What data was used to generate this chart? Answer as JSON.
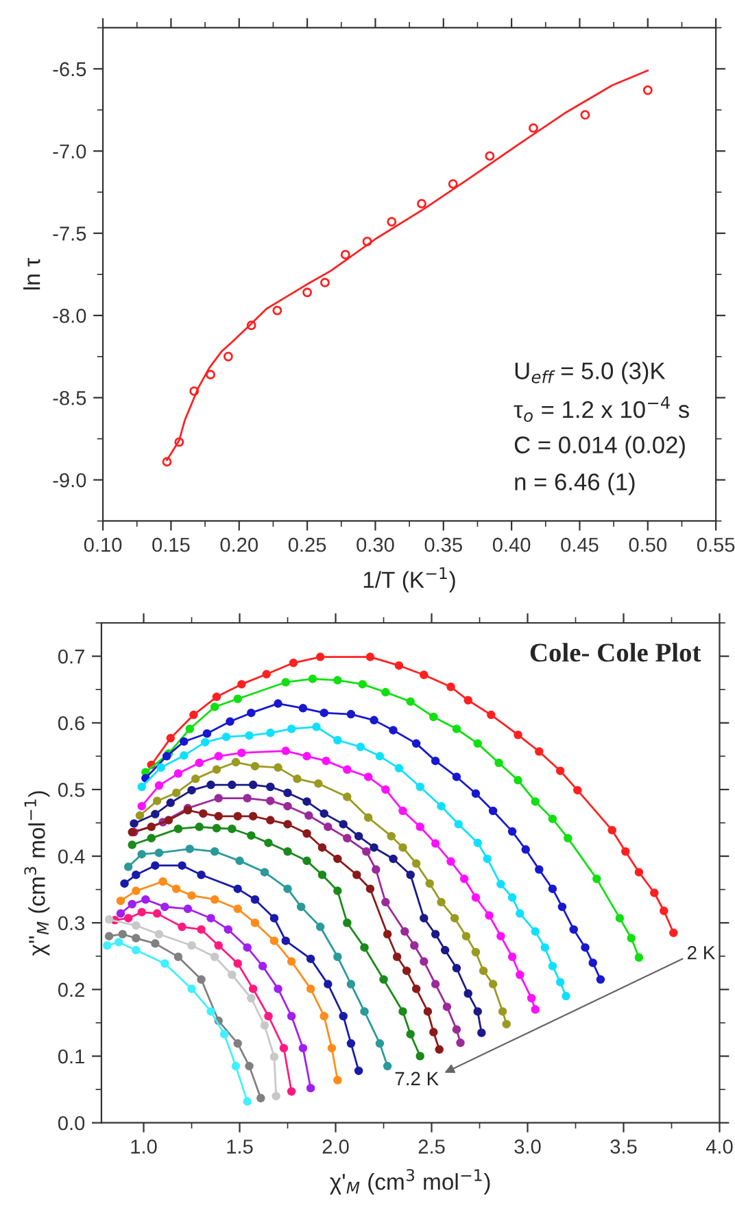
{
  "chart_data": [
    {
      "type": "scatter",
      "xlabel": "1/T (K$^{−1}$)",
      "ylabel": "ln τ",
      "xlim": [
        0.1,
        0.55
      ],
      "ylim": [
        -9.25,
        -6.25
      ],
      "xticks": [
        {
          "value": 0.1,
          "label": "0.10"
        },
        {
          "value": 0.15,
          "label": "0.15"
        },
        {
          "value": 0.2,
          "label": "0.20"
        },
        {
          "value": 0.25,
          "label": "0.25"
        },
        {
          "value": 0.3,
          "label": "0.30"
        },
        {
          "value": 0.35,
          "label": "0.35"
        },
        {
          "value": 0.4,
          "label": "0.40"
        },
        {
          "value": 0.45,
          "label": "0.45"
        },
        {
          "value": 0.5,
          "label": "0.50"
        },
        {
          "value": 0.55,
          "label": "0.55"
        }
      ],
      "yticks": [
        -6.5,
        {
          "value": -7.0,
          "label": "-7.0"
        },
        -7.5,
        {
          "value": -8.0,
          "label": "-8.0"
        },
        -8.5,
        {
          "value": -9.0,
          "label": "-9.0"
        }
      ],
      "grid": false,
      "series": [
        {
          "type": "scatter",
          "marker": "circle",
          "color": "#ff2020",
          "x": [
            0.147,
            0.156,
            0.167,
            0.179,
            0.192,
            0.209,
            0.228,
            0.25,
            0.263,
            0.278,
            0.294,
            0.312,
            0.334,
            0.357,
            0.384,
            0.416,
            0.454,
            0.5
          ],
          "values": [
            -8.89,
            -8.77,
            -8.46,
            -8.36,
            -8.25,
            -8.06,
            -7.97,
            -7.86,
            -7.8,
            -7.63,
            -7.55,
            -7.43,
            -7.32,
            -7.2,
            -7.03,
            -6.86,
            -6.78,
            -6.63
          ]
        },
        {
          "type": "line",
          "color": "#ff2020",
          "x": [
            0.147,
            0.156,
            0.16,
            0.17,
            0.178,
            0.187,
            0.195,
            0.209,
            0.22,
            0.232,
            0.25,
            0.267,
            0.301,
            0.336,
            0.37,
            0.405,
            0.439,
            0.474,
            0.5
          ],
          "values": [
            -8.88,
            -8.76,
            -8.64,
            -8.44,
            -8.32,
            -8.22,
            -8.16,
            -8.05,
            -7.96,
            -7.9,
            -7.81,
            -7.73,
            -7.53,
            -7.35,
            -7.16,
            -6.96,
            -6.77,
            -6.6,
            -6.51
          ]
        }
      ],
      "annotations": [
        "U$_{eff}$ = 5.0 (3)K",
        "τ$_{o}$ = 1.2 x 10$^{−4}$ s",
        "C = 0.014 (0.02)",
        "n = 6.46 (1)"
      ]
    },
    {
      "type": "line",
      "title": "Cole- Cole Plot",
      "xlabel": "χ'$_{M}$ (cm$^{3}$ mol$^{−1}$)",
      "ylabel": "χ''$_{M}$ (cm$^{3}$ mol$^{−1}$)",
      "xlim": [
        0.78,
        4.0
      ],
      "ylim": [
        0.0,
        0.75
      ],
      "xticks": [
        {
          "value": 1.0,
          "label": "1.0"
        },
        1.5,
        {
          "value": 2.0,
          "label": "2.0"
        },
        2.5,
        {
          "value": 3.0,
          "label": "3.0"
        },
        3.5,
        {
          "value": 4.0,
          "label": "4.0"
        }
      ],
      "yticks": [
        {
          "value": 0.0,
          "label": "0.0"
        },
        0.1,
        0.2,
        0.3,
        0.4,
        0.5,
        0.6,
        0.7
      ],
      "grid": false,
      "marker": "circle",
      "line_style": "solid",
      "series": [
        {
          "color": "#ff2020",
          "x": [
            1.04,
            1.14,
            1.26,
            1.38,
            1.51,
            1.64,
            1.78,
            1.92,
            2.18,
            2.33,
            2.46,
            2.6,
            2.69,
            2.81,
            2.95,
            3.06,
            3.17,
            3.26,
            3.44,
            3.51,
            3.58,
            3.66,
            3.71,
            3.76
          ],
          "values": [
            0.537,
            0.577,
            0.612,
            0.639,
            0.658,
            0.673,
            0.69,
            0.699,
            0.699,
            0.686,
            0.672,
            0.654,
            0.634,
            0.612,
            0.582,
            0.557,
            0.528,
            0.499,
            0.439,
            0.407,
            0.376,
            0.345,
            0.318,
            0.285
          ]
        },
        {
          "color": "#10e010",
          "x": [
            1.01,
            1.13,
            1.24,
            1.37,
            1.49,
            1.74,
            1.88,
            2.01,
            2.14,
            2.26,
            2.39,
            2.51,
            2.63,
            2.74,
            2.85,
            2.95,
            3.04,
            3.13,
            3.21,
            3.36,
            3.48,
            3.54,
            3.58
          ],
          "values": [
            0.526,
            0.554,
            0.591,
            0.624,
            0.636,
            0.661,
            0.666,
            0.664,
            0.658,
            0.646,
            0.632,
            0.609,
            0.591,
            0.569,
            0.54,
            0.514,
            0.482,
            0.456,
            0.427,
            0.366,
            0.307,
            0.277,
            0.248
          ]
        },
        {
          "color": "#1818d0",
          "x": [
            1.01,
            1.12,
            1.21,
            1.33,
            1.45,
            1.56,
            1.7,
            1.83,
            1.94,
            2.08,
            2.2,
            2.3,
            2.42,
            2.52,
            2.63,
            2.73,
            2.82,
            2.92,
            2.99,
            3.06,
            3.13,
            3.18,
            3.24,
            3.3,
            3.34,
            3.38
          ],
          "values": [
            0.517,
            0.55,
            0.572,
            0.584,
            0.602,
            0.615,
            0.629,
            0.622,
            0.615,
            0.613,
            0.604,
            0.589,
            0.569,
            0.543,
            0.519,
            0.494,
            0.468,
            0.437,
            0.41,
            0.38,
            0.351,
            0.324,
            0.29,
            0.263,
            0.24,
            0.215
          ]
        },
        {
          "color": "#10e0ff",
          "x": [
            0.99,
            1.09,
            1.21,
            1.32,
            1.43,
            1.55,
            1.66,
            1.77,
            1.9,
            2.01,
            2.13,
            2.23,
            2.33,
            2.44,
            2.55,
            2.64,
            2.74,
            2.79,
            2.86,
            2.92,
            2.96,
            3.04,
            3.09,
            3.13,
            3.17,
            3.2
          ],
          "values": [
            0.504,
            0.533,
            0.551,
            0.571,
            0.579,
            0.581,
            0.585,
            0.591,
            0.594,
            0.574,
            0.564,
            0.55,
            0.532,
            0.504,
            0.475,
            0.448,
            0.42,
            0.396,
            0.358,
            0.338,
            0.314,
            0.287,
            0.263,
            0.235,
            0.211,
            0.19
          ]
        },
        {
          "color": "#ff10ff",
          "x": [
            0.99,
            1.08,
            1.18,
            1.29,
            1.39,
            1.51,
            1.74,
            1.85,
            1.95,
            2.06,
            2.17,
            2.26,
            2.35,
            2.44,
            2.52,
            2.6,
            2.67,
            2.73,
            2.8,
            2.86,
            2.92,
            2.96,
            3.02,
            3.04
          ],
          "values": [
            0.475,
            0.506,
            0.524,
            0.54,
            0.55,
            0.555,
            0.558,
            0.55,
            0.543,
            0.53,
            0.519,
            0.5,
            0.468,
            0.444,
            0.419,
            0.392,
            0.366,
            0.338,
            0.311,
            0.28,
            0.249,
            0.222,
            0.187,
            0.17
          ]
        },
        {
          "color": "#9a9a20",
          "x": [
            0.98,
            1.07,
            1.17,
            1.27,
            1.38,
            1.48,
            1.58,
            1.7,
            1.8,
            1.91,
            2.06,
            2.17,
            2.29,
            2.35,
            2.42,
            2.49,
            2.55,
            2.62,
            2.68,
            2.73,
            2.77,
            2.82,
            2.87,
            2.89
          ],
          "values": [
            0.461,
            0.483,
            0.495,
            0.516,
            0.53,
            0.541,
            0.535,
            0.533,
            0.516,
            0.509,
            0.489,
            0.458,
            0.43,
            0.413,
            0.389,
            0.359,
            0.331,
            0.307,
            0.28,
            0.256,
            0.228,
            0.208,
            0.167,
            0.148
          ]
        },
        {
          "color": "#1a1a8a",
          "x": [
            0.95,
            1.06,
            1.14,
            1.25,
            1.35,
            1.46,
            1.57,
            1.66,
            1.75,
            1.85,
            1.94,
            2.04,
            2.12,
            2.2,
            2.3,
            2.39,
            2.46,
            2.52,
            2.57,
            2.63,
            2.69,
            2.74,
            2.76
          ],
          "values": [
            0.449,
            0.463,
            0.48,
            0.499,
            0.507,
            0.507,
            0.507,
            0.504,
            0.495,
            0.482,
            0.464,
            0.448,
            0.43,
            0.413,
            0.396,
            0.372,
            0.307,
            0.283,
            0.259,
            0.232,
            0.194,
            0.167,
            0.135
          ]
        },
        {
          "color": "#9a2a9a",
          "x": [
            0.95,
            1.1,
            1.23,
            1.39,
            1.54,
            1.66,
            1.75,
            1.86,
            1.96,
            2.06,
            2.16,
            2.21,
            2.26,
            2.36,
            2.41,
            2.46,
            2.52,
            2.58,
            2.63,
            2.65
          ],
          "values": [
            0.436,
            0.451,
            0.472,
            0.487,
            0.487,
            0.483,
            0.475,
            0.461,
            0.444,
            0.427,
            0.407,
            0.38,
            0.331,
            0.287,
            0.266,
            0.242,
            0.208,
            0.174,
            0.14,
            0.12
          ]
        },
        {
          "color": "#8b1a1a",
          "x": [
            0.94,
            1.04,
            1.13,
            1.23,
            1.31,
            1.39,
            1.49,
            1.57,
            1.66,
            1.75,
            1.85,
            1.93,
            2.01,
            2.11,
            2.18,
            2.27,
            2.32,
            2.37,
            2.42,
            2.48,
            2.51,
            2.54
          ],
          "values": [
            0.436,
            0.444,
            0.454,
            0.469,
            0.464,
            0.46,
            0.46,
            0.46,
            0.454,
            0.448,
            0.434,
            0.413,
            0.396,
            0.372,
            0.351,
            0.283,
            0.249,
            0.228,
            0.201,
            0.167,
            0.136,
            0.11
          ]
        },
        {
          "color": "#1a8a1a",
          "x": [
            0.94,
            1.04,
            1.18,
            1.29,
            1.38,
            1.46,
            1.56,
            1.65,
            1.75,
            1.85,
            1.93,
            2.01,
            2.06,
            2.15,
            2.25,
            2.35,
            2.39,
            2.44
          ],
          "values": [
            0.417,
            0.427,
            0.441,
            0.444,
            0.442,
            0.441,
            0.431,
            0.42,
            0.407,
            0.393,
            0.372,
            0.348,
            0.3,
            0.263,
            0.215,
            0.167,
            0.133,
            0.1
          ]
        },
        {
          "color": "#2a9a9a",
          "x": [
            0.92,
            0.99,
            1.08,
            1.24,
            1.37,
            1.5,
            1.63,
            1.75,
            1.82,
            1.92,
            2.01,
            2.08,
            2.15,
            2.23,
            2.27
          ],
          "values": [
            0.384,
            0.403,
            0.405,
            0.411,
            0.407,
            0.393,
            0.376,
            0.351,
            0.324,
            0.294,
            0.249,
            0.208,
            0.167,
            0.119,
            0.085
          ]
        },
        {
          "color": "#1a1aaa",
          "x": [
            0.9,
            0.96,
            1.06,
            1.2,
            1.3,
            1.49,
            1.58,
            1.68,
            1.74,
            1.87,
            1.96,
            2.04,
            2.08,
            2.12
          ],
          "values": [
            0.359,
            0.372,
            0.386,
            0.386,
            0.372,
            0.351,
            0.335,
            0.307,
            0.273,
            0.246,
            0.208,
            0.16,
            0.119,
            0.078
          ]
        },
        {
          "color": "#ff8c1a",
          "x": [
            0.88,
            0.96,
            1.1,
            1.17,
            1.25,
            1.37,
            1.49,
            1.58,
            1.68,
            1.77,
            1.87,
            1.94,
            1.98,
            2.01
          ],
          "values": [
            0.333,
            0.348,
            0.362,
            0.351,
            0.341,
            0.335,
            0.321,
            0.3,
            0.273,
            0.242,
            0.201,
            0.16,
            0.112,
            0.064
          ]
        },
        {
          "color": "#a020f0",
          "x": [
            0.88,
            0.94,
            1.01,
            1.11,
            1.23,
            1.35,
            1.44,
            1.54,
            1.62,
            1.7,
            1.77,
            1.83,
            1.87
          ],
          "values": [
            0.314,
            0.328,
            0.335,
            0.324,
            0.321,
            0.307,
            0.29,
            0.263,
            0.235,
            0.201,
            0.16,
            0.112,
            0.052
          ]
        },
        {
          "color": "#ff1a80",
          "x": [
            0.85,
            0.92,
            0.99,
            1.07,
            1.2,
            1.3,
            1.39,
            1.49,
            1.57,
            1.65,
            1.73,
            1.77
          ],
          "values": [
            0.304,
            0.307,
            0.316,
            0.314,
            0.294,
            0.29,
            0.266,
            0.239,
            0.201,
            0.16,
            0.112,
            0.047
          ]
        },
        {
          "color": "#c8c8c8",
          "x": [
            0.82,
            0.96,
            1.08,
            1.25,
            1.37,
            1.46,
            1.56,
            1.63,
            1.68,
            1.69
          ],
          "values": [
            0.305,
            0.296,
            0.283,
            0.266,
            0.249,
            0.222,
            0.187,
            0.146,
            0.099,
            0.04
          ]
        },
        {
          "color": "#808080",
          "x": [
            0.82,
            0.89,
            0.96,
            1.06,
            1.18,
            1.3,
            1.39,
            1.49,
            1.55,
            1.61
          ],
          "values": [
            0.28,
            0.283,
            0.277,
            0.269,
            0.249,
            0.215,
            0.153,
            0.119,
            0.085,
            0.037
          ]
        },
        {
          "color": "#40f0ff",
          "x": [
            0.81,
            0.87,
            0.96,
            1.11,
            1.25,
            1.35,
            1.42,
            1.48,
            1.54
          ],
          "values": [
            0.266,
            0.271,
            0.259,
            0.239,
            0.201,
            0.167,
            0.133,
            0.085,
            0.032
          ]
        }
      ],
      "annotations": [
        "2 K",
        "7.2 K"
      ]
    }
  ]
}
